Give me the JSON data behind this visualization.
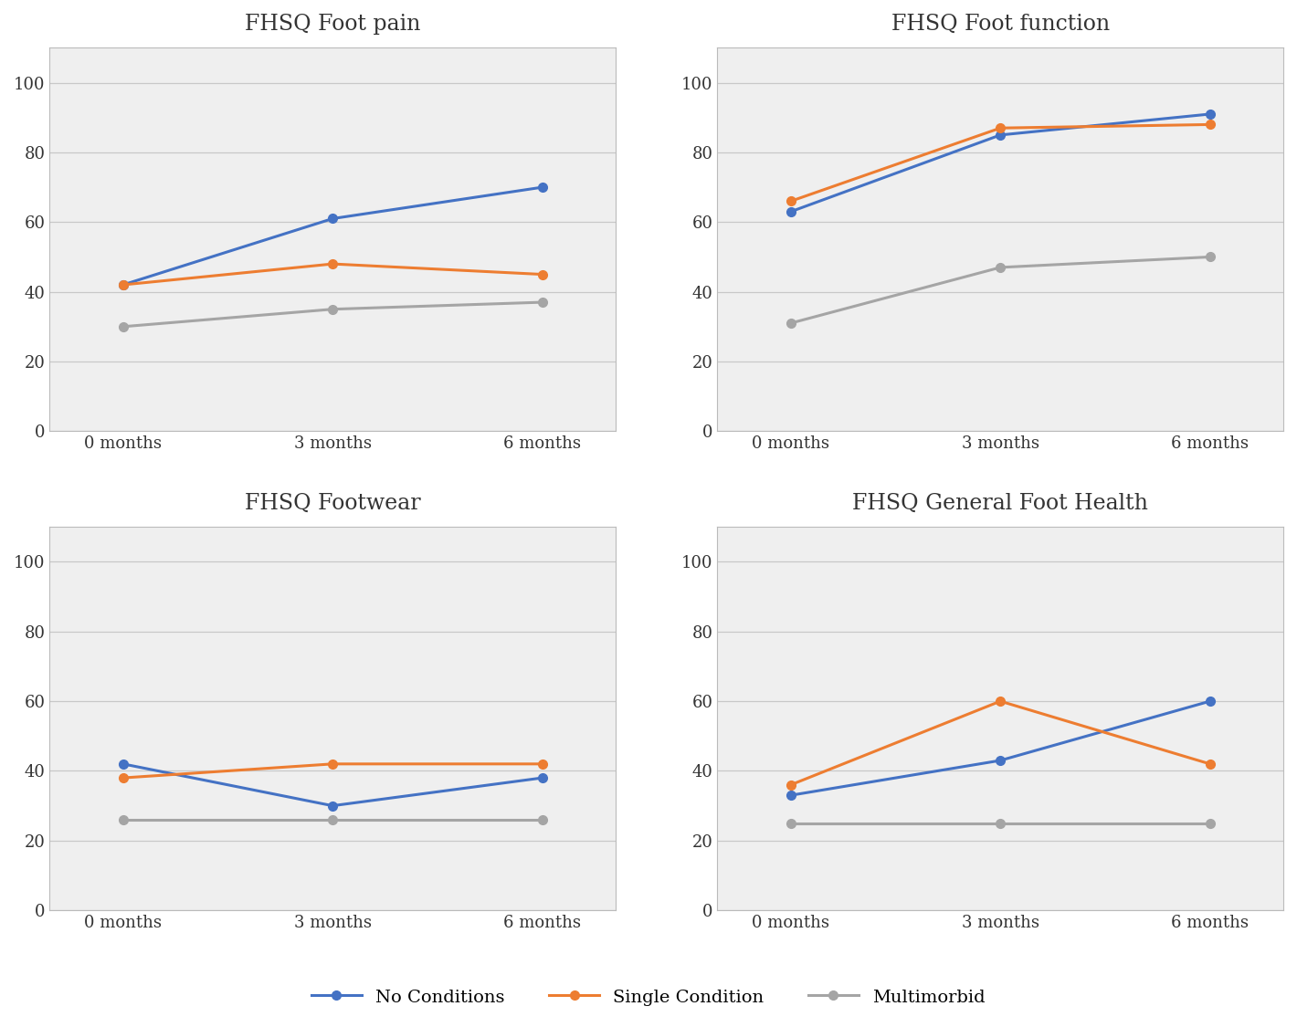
{
  "subplots": [
    {
      "title": "FHSQ Foot pain",
      "no_conditions": [
        42,
        61,
        70
      ],
      "single_condition": [
        42,
        48,
        45
      ],
      "multimorbid": [
        30,
        35,
        37
      ]
    },
    {
      "title": "FHSQ Foot function",
      "no_conditions": [
        63,
        85,
        91
      ],
      "single_condition": [
        66,
        87,
        88
      ],
      "multimorbid": [
        31,
        47,
        50
      ]
    },
    {
      "title": "FHSQ Footwear",
      "no_conditions": [
        42,
        30,
        38
      ],
      "single_condition": [
        38,
        42,
        42
      ],
      "multimorbid": [
        26,
        26,
        26
      ]
    },
    {
      "title": "FHSQ General Foot Health",
      "no_conditions": [
        33,
        43,
        60
      ],
      "single_condition": [
        36,
        60,
        42
      ],
      "multimorbid": [
        25,
        25,
        25
      ]
    }
  ],
  "x_labels": [
    "0 months",
    "3 months",
    "6 months"
  ],
  "ylim": [
    0,
    110
  ],
  "yticks": [
    0,
    20,
    40,
    60,
    80,
    100
  ],
  "color_no_conditions": "#4472C4",
  "color_single_condition": "#ED7D31",
  "color_multimorbid": "#A5A5A5",
  "legend_labels": [
    "No Conditions",
    "Single Condition",
    "Multimorbid"
  ],
  "marker": "o",
  "marker_size": 7,
  "line_width": 2.2,
  "title_fontsize": 17,
  "tick_fontsize": 13,
  "legend_fontsize": 14,
  "background_color": "#FFFFFF",
  "panel_background": "#EFEFEF",
  "grid_color": "#C8C8C8",
  "border_color": "#BBBBBB"
}
